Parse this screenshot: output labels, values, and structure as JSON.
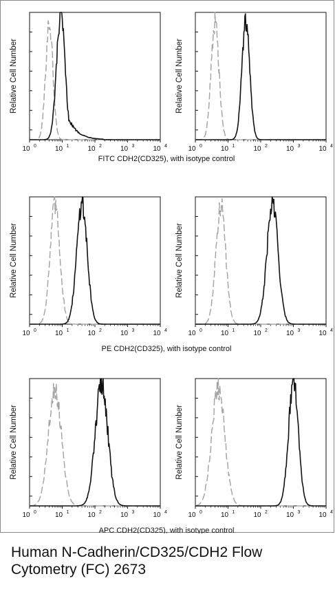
{
  "figure": {
    "caption": "Human N-Cadherin/CD325/CDH2 Flow Cytometry (FC) 2673",
    "rows": [
      {
        "xlabel": "FITC CDH2(CD325), with isotype control"
      },
      {
        "xlabel": "PE CDH2(CD325), with isotype control"
      },
      {
        "xlabel": "APC CDH2(CD325), with isotype control"
      }
    ]
  },
  "chart_data": [
    {
      "type": "line",
      "ylabel": "Relative Cell Number",
      "x_scale": "log",
      "xlim": [
        1,
        10000
      ],
      "xticks": [
        {
          "base": "10",
          "exp": "0"
        },
        {
          "base": "10",
          "exp": "1"
        },
        {
          "base": "10",
          "exp": "2"
        },
        {
          "base": "10",
          "exp": "3"
        },
        {
          "base": "10",
          "exp": "4"
        }
      ],
      "colors": {
        "isotype": "#a6a6a6",
        "stained": "#111111"
      },
      "series": [
        {
          "role": "isotype",
          "style": "dashed",
          "peak_x": 4,
          "peak_height": 0.92,
          "spread": 0.11
        },
        {
          "role": "stained",
          "style": "solid",
          "peak_x": 9,
          "peak_height": 0.97,
          "spread": 0.13,
          "tail": 0.4
        }
      ]
    },
    {
      "type": "line",
      "ylabel": "Relative Cell Number",
      "x_scale": "log",
      "xlim": [
        1,
        10000
      ],
      "xticks": [
        {
          "base": "10",
          "exp": "0"
        },
        {
          "base": "10",
          "exp": "1"
        },
        {
          "base": "10",
          "exp": "2"
        },
        {
          "base": "10",
          "exp": "3"
        },
        {
          "base": "10",
          "exp": "4"
        }
      ],
      "colors": {
        "isotype": "#a6a6a6",
        "stained": "#111111"
      },
      "series": [
        {
          "role": "isotype",
          "style": "dashed",
          "peak_x": 4,
          "peak_height": 0.92,
          "spread": 0.12
        },
        {
          "role": "stained",
          "style": "solid",
          "peak_x": 35,
          "peak_height": 0.92,
          "spread": 0.12
        }
      ]
    },
    {
      "type": "line",
      "ylabel": "Relative Cell Number",
      "x_scale": "log",
      "xlim": [
        1,
        10000
      ],
      "xticks": [
        {
          "base": "10",
          "exp": "0"
        },
        {
          "base": "10",
          "exp": "1"
        },
        {
          "base": "10",
          "exp": "2"
        },
        {
          "base": "10",
          "exp": "3"
        },
        {
          "base": "10",
          "exp": "4"
        }
      ],
      "colors": {
        "isotype": "#a6a6a6",
        "stained": "#111111"
      },
      "series": [
        {
          "role": "isotype",
          "style": "dashed",
          "peak_x": 6,
          "peak_height": 0.93,
          "spread": 0.15
        },
        {
          "role": "stained",
          "style": "solid",
          "peak_x": 40,
          "peak_height": 0.96,
          "spread": 0.16
        }
      ]
    },
    {
      "type": "line",
      "ylabel": "Relative Cell Number",
      "x_scale": "log",
      "xlim": [
        1,
        10000
      ],
      "xticks": [
        {
          "base": "10",
          "exp": "0"
        },
        {
          "base": "10",
          "exp": "1"
        },
        {
          "base": "10",
          "exp": "2"
        },
        {
          "base": "10",
          "exp": "3"
        },
        {
          "base": "10",
          "exp": "4"
        }
      ],
      "colors": {
        "isotype": "#a6a6a6",
        "stained": "#111111"
      },
      "series": [
        {
          "role": "isotype",
          "style": "dashed",
          "peak_x": 6,
          "peak_height": 0.93,
          "spread": 0.15
        },
        {
          "role": "stained",
          "style": "solid",
          "peak_x": 230,
          "peak_height": 0.95,
          "spread": 0.17
        }
      ]
    },
    {
      "type": "line",
      "ylabel": "Relative Cell Number",
      "x_scale": "log",
      "xlim": [
        1,
        10000
      ],
      "xticks": [
        {
          "base": "10",
          "exp": "0"
        },
        {
          "base": "10",
          "exp": "1"
        },
        {
          "base": "10",
          "exp": "2"
        },
        {
          "base": "10",
          "exp": "3"
        },
        {
          "base": "10",
          "exp": "4"
        }
      ],
      "colors": {
        "isotype": "#a6a6a6",
        "stained": "#111111"
      },
      "series": [
        {
          "role": "isotype",
          "style": "dashed",
          "peak_x": 6,
          "peak_height": 0.92,
          "spread": 0.2
        },
        {
          "role": "stained",
          "style": "solid",
          "peak_x": 160,
          "peak_height": 0.97,
          "spread": 0.19
        }
      ]
    },
    {
      "type": "line",
      "ylabel": "Relative Cell Number",
      "x_scale": "log",
      "xlim": [
        1,
        10000
      ],
      "xticks": [
        {
          "base": "10",
          "exp": "0"
        },
        {
          "base": "10",
          "exp": "1"
        },
        {
          "base": "10",
          "exp": "2"
        },
        {
          "base": "10",
          "exp": "3"
        },
        {
          "base": "10",
          "exp": "4"
        }
      ],
      "colors": {
        "isotype": "#a6a6a6",
        "stained": "#111111"
      },
      "series": [
        {
          "role": "isotype",
          "style": "dashed",
          "peak_x": 5,
          "peak_height": 0.92,
          "spread": 0.2
        },
        {
          "role": "stained",
          "style": "solid",
          "peak_x": 1000,
          "peak_height": 0.97,
          "spread": 0.15
        }
      ]
    }
  ]
}
